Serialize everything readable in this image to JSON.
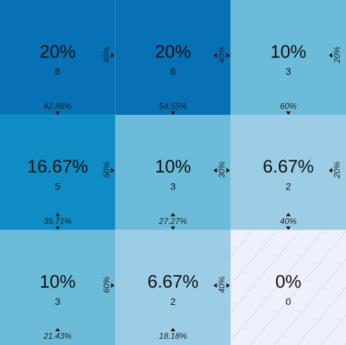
{
  "chart_data": {
    "type": "heatmap",
    "rows": 3,
    "cols": 3,
    "cells": [
      [
        {
          "pct": "20%",
          "count": 6,
          "col_pct": "42.86%",
          "row_pct": "40%",
          "fill": "#0672b5",
          "col_arrows": "down",
          "row_arrows": "right"
        },
        {
          "pct": "20%",
          "count": 6,
          "col_pct": "54.55%",
          "row_pct": "40%",
          "fill": "#0672b5",
          "col_arrows": "down",
          "row_arrows": "both"
        },
        {
          "pct": "10%",
          "count": 3,
          "col_pct": "60%",
          "row_pct": "20%",
          "fill": "#6cbcd9",
          "col_arrows": "down",
          "row_arrows": "left"
        }
      ],
      [
        {
          "pct": "16.67%",
          "count": 5,
          "col_pct": "35.71%",
          "row_pct": "50%",
          "fill": "#0e8cc4",
          "col_arrows": "both",
          "row_arrows": "right"
        },
        {
          "pct": "10%",
          "count": 3,
          "col_pct": "27.27%",
          "row_pct": "30%",
          "fill": "#6cbcd9",
          "col_arrows": "both",
          "row_arrows": "both"
        },
        {
          "pct": "6.67%",
          "count": 2,
          "col_pct": "40%",
          "row_pct": "20%",
          "fill": "#9ccde6",
          "col_arrows": "both",
          "row_arrows": "left"
        }
      ],
      [
        {
          "pct": "10%",
          "count": 3,
          "col_pct": "21.43%",
          "row_pct": "60%",
          "fill": "#6cbcd9",
          "col_arrows": "up",
          "row_arrows": "right"
        },
        {
          "pct": "6.67%",
          "count": 2,
          "col_pct": "18.18%",
          "row_pct": "40%",
          "fill": "#9ccde6",
          "col_arrows": "up",
          "row_arrows": "both"
        },
        {
          "pct": "0%",
          "count": 0,
          "col_pct": "",
          "row_pct": "",
          "fill": "#eef0fb",
          "col_arrows": "none",
          "row_arrows": "none",
          "hatched": true
        }
      ]
    ]
  }
}
